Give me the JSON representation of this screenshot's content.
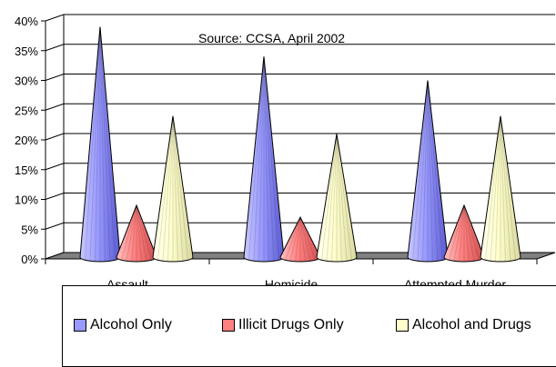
{
  "chart_data": {
    "type": "bar",
    "subtype": "3d-cone",
    "annotation": "Source: CCSA, April 2002",
    "categories": [
      "Assault",
      "Homicide",
      "Attempted Murder"
    ],
    "ylim": [
      0,
      40
    ],
    "yticks": [
      "0%",
      "5%",
      "10%",
      "15%",
      "20%",
      "25%",
      "30%",
      "35%",
      "40%"
    ],
    "series": [
      {
        "name": "Alcohol Only",
        "values": [
          39,
          34,
          30
        ],
        "color": "#9999ff"
      },
      {
        "name": "Illicit Drugs Only",
        "values": [
          9,
          7,
          9
        ],
        "color": "#ff8080"
      },
      {
        "name": "Alcohol and Drugs",
        "values": [
          24,
          21,
          24
        ],
        "color": "#ffffcc"
      }
    ],
    "grid": true,
    "legend_position": "bottom"
  }
}
